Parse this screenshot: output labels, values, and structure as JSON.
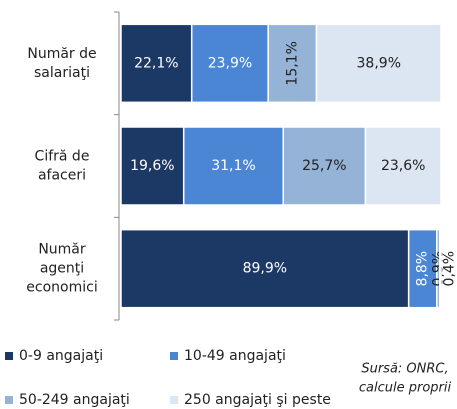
{
  "chart_data": {
    "type": "bar",
    "orientation": "horizontal",
    "stacked": true,
    "categories": [
      "Număr de\nsalariaţi",
      "Cifră de\nafaceri",
      "Număr\nagenţi\neconomici"
    ],
    "xlim": [
      0,
      100
    ],
    "series": [
      {
        "name": "0-9 angajaţi",
        "color": "#1c3864",
        "values": [
          22.1,
          19.6,
          89.9
        ],
        "value_labels": [
          "22,1%",
          "19,6%",
          "89,9%"
        ]
      },
      {
        "name": "10-49 angajaţi",
        "color": "#4a86d4",
        "values": [
          23.9,
          31.1,
          8.8
        ],
        "value_labels": [
          "23,9%",
          "31,1%",
          "8,8%"
        ]
      },
      {
        "name": "50-249 angajaţi",
        "color": "#95b3d7",
        "values": [
          15.1,
          25.7,
          0.9
        ],
        "value_labels": [
          "15,1%",
          "25,7%",
          "0,9%"
        ]
      },
      {
        "name": "250 angajaţi şi peste",
        "color": "#dce6f2",
        "values": [
          38.9,
          23.6,
          0.4
        ],
        "value_labels": [
          "38,9%",
          "23,6%",
          "0,4%"
        ]
      }
    ],
    "note": "Sursă: ONRC,\ncalcule proprii"
  }
}
